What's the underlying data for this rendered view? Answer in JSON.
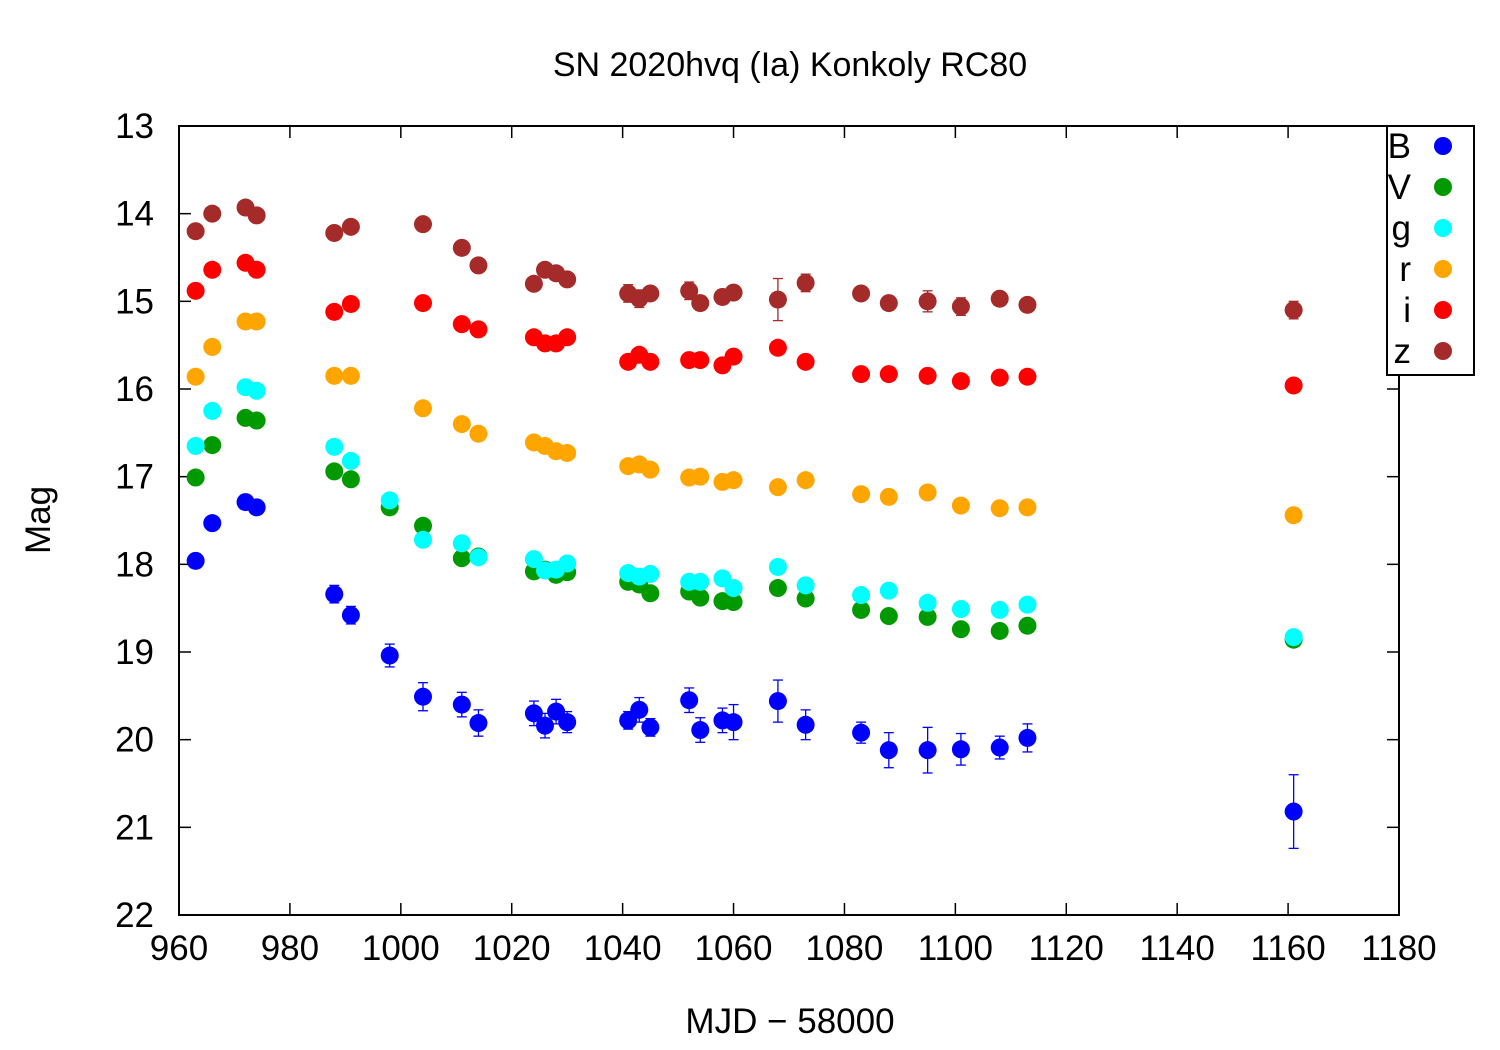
{
  "chart_data": {
    "type": "scatter",
    "title": "SN 2020hvq (Ia) Konkoly RC80",
    "xlabel": "MJD − 58000",
    "ylabel": "Mag",
    "xlim": [
      960,
      1180
    ],
    "ylim": [
      22,
      13
    ],
    "y_inverted": true,
    "x_ticks": [
      960,
      980,
      1000,
      1020,
      1040,
      1060,
      1080,
      1100,
      1120,
      1140,
      1160,
      1180
    ],
    "y_ticks": [
      13,
      14,
      15,
      16,
      17,
      18,
      19,
      20,
      21,
      22
    ],
    "grid": false,
    "legend_position": "top-right",
    "series": [
      {
        "name": "B",
        "color": "#0000ff",
        "points": [
          {
            "x": 963,
            "y": 17.96,
            "err": 0.08
          },
          {
            "x": 966,
            "y": 17.53,
            "err": 0.08
          },
          {
            "x": 972,
            "y": 17.29,
            "err": 0.08
          },
          {
            "x": 974,
            "y": 17.35,
            "err": 0.08
          },
          {
            "x": 988,
            "y": 18.34,
            "err": 0.1
          },
          {
            "x": 991,
            "y": 18.58,
            "err": 0.1
          },
          {
            "x": 998,
            "y": 19.04,
            "err": 0.13
          },
          {
            "x": 1004,
            "y": 19.51,
            "err": 0.16
          },
          {
            "x": 1011,
            "y": 19.6,
            "err": 0.14
          },
          {
            "x": 1014,
            "y": 19.81,
            "err": 0.15
          },
          {
            "x": 1024,
            "y": 19.7,
            "err": 0.14
          },
          {
            "x": 1026,
            "y": 19.84,
            "err": 0.14
          },
          {
            "x": 1028,
            "y": 19.68,
            "err": 0.14
          },
          {
            "x": 1030,
            "y": 19.8,
            "err": 0.12
          },
          {
            "x": 1041,
            "y": 19.78,
            "err": 0.1
          },
          {
            "x": 1043,
            "y": 19.66,
            "err": 0.14
          },
          {
            "x": 1045,
            "y": 19.86,
            "err": 0.1
          },
          {
            "x": 1052,
            "y": 19.55,
            "err": 0.14
          },
          {
            "x": 1054,
            "y": 19.89,
            "err": 0.14
          },
          {
            "x": 1058,
            "y": 19.78,
            "err": 0.14
          },
          {
            "x": 1060,
            "y": 19.8,
            "err": 0.2
          },
          {
            "x": 1068,
            "y": 19.56,
            "err": 0.24
          },
          {
            "x": 1073,
            "y": 19.83,
            "err": 0.17
          },
          {
            "x": 1083,
            "y": 19.92,
            "err": 0.12
          },
          {
            "x": 1088,
            "y": 20.12,
            "err": 0.2
          },
          {
            "x": 1095,
            "y": 20.12,
            "err": 0.26
          },
          {
            "x": 1101,
            "y": 20.11,
            "err": 0.18
          },
          {
            "x": 1108,
            "y": 20.09,
            "err": 0.13
          },
          {
            "x": 1113,
            "y": 19.98,
            "err": 0.16
          },
          {
            "x": 1161,
            "y": 20.82,
            "err": 0.42
          }
        ]
      },
      {
        "name": "V",
        "color": "#009900",
        "points": [
          {
            "x": 963,
            "y": 17.01,
            "err": 0.04
          },
          {
            "x": 966,
            "y": 16.64,
            "err": 0.04
          },
          {
            "x": 972,
            "y": 16.33,
            "err": 0.04
          },
          {
            "x": 974,
            "y": 16.36,
            "err": 0.04
          },
          {
            "x": 988,
            "y": 16.94,
            "err": 0.05
          },
          {
            "x": 991,
            "y": 17.03,
            "err": 0.05
          },
          {
            "x": 998,
            "y": 17.35,
            "err": 0.05
          },
          {
            "x": 1004,
            "y": 17.56,
            "err": 0.05
          },
          {
            "x": 1011,
            "y": 17.93,
            "err": 0.05
          },
          {
            "x": 1014,
            "y": 17.91,
            "err": 0.05
          },
          {
            "x": 1024,
            "y": 18.08,
            "err": 0.05
          },
          {
            "x": 1026,
            "y": 18.06,
            "err": 0.05
          },
          {
            "x": 1028,
            "y": 18.12,
            "err": 0.05
          },
          {
            "x": 1030,
            "y": 18.09,
            "err": 0.05
          },
          {
            "x": 1041,
            "y": 18.2,
            "err": 0.05
          },
          {
            "x": 1043,
            "y": 18.23,
            "err": 0.05
          },
          {
            "x": 1045,
            "y": 18.33,
            "err": 0.05
          },
          {
            "x": 1052,
            "y": 18.31,
            "err": 0.05
          },
          {
            "x": 1054,
            "y": 18.38,
            "err": 0.05
          },
          {
            "x": 1058,
            "y": 18.42,
            "err": 0.05
          },
          {
            "x": 1060,
            "y": 18.43,
            "err": 0.05
          },
          {
            "x": 1068,
            "y": 18.27,
            "err": 0.06
          },
          {
            "x": 1073,
            "y": 18.39,
            "err": 0.05
          },
          {
            "x": 1083,
            "y": 18.52,
            "err": 0.05
          },
          {
            "x": 1088,
            "y": 18.59,
            "err": 0.05
          },
          {
            "x": 1095,
            "y": 18.6,
            "err": 0.06
          },
          {
            "x": 1101,
            "y": 18.74,
            "err": 0.05
          },
          {
            "x": 1108,
            "y": 18.76,
            "err": 0.05
          },
          {
            "x": 1113,
            "y": 18.7,
            "err": 0.05
          },
          {
            "x": 1161,
            "y": 18.86,
            "err": 0.06
          }
        ]
      },
      {
        "name": "g",
        "color": "#00ffff",
        "points": [
          {
            "x": 963,
            "y": 16.65,
            "err": 0.04
          },
          {
            "x": 966,
            "y": 16.25,
            "err": 0.04
          },
          {
            "x": 972,
            "y": 15.98,
            "err": 0.04
          },
          {
            "x": 974,
            "y": 16.02,
            "err": 0.04
          },
          {
            "x": 988,
            "y": 16.66,
            "err": 0.04
          },
          {
            "x": 991,
            "y": 16.82,
            "err": 0.04
          },
          {
            "x": 998,
            "y": 17.27,
            "err": 0.05
          },
          {
            "x": 1004,
            "y": 17.72,
            "err": 0.05
          },
          {
            "x": 1011,
            "y": 17.76,
            "err": 0.05
          },
          {
            "x": 1014,
            "y": 17.92,
            "err": 0.05
          },
          {
            "x": 1024,
            "y": 17.94,
            "err": 0.05
          },
          {
            "x": 1026,
            "y": 18.07,
            "err": 0.05
          },
          {
            "x": 1028,
            "y": 18.06,
            "err": 0.05
          },
          {
            "x": 1030,
            "y": 17.99,
            "err": 0.05
          },
          {
            "x": 1041,
            "y": 18.1,
            "err": 0.05
          },
          {
            "x": 1043,
            "y": 18.14,
            "err": 0.05
          },
          {
            "x": 1045,
            "y": 18.11,
            "err": 0.05
          },
          {
            "x": 1052,
            "y": 18.2,
            "err": 0.05
          },
          {
            "x": 1054,
            "y": 18.2,
            "err": 0.05
          },
          {
            "x": 1058,
            "y": 18.16,
            "err": 0.05
          },
          {
            "x": 1060,
            "y": 18.27,
            "err": 0.05
          },
          {
            "x": 1068,
            "y": 18.03,
            "err": 0.08
          },
          {
            "x": 1073,
            "y": 18.24,
            "err": 0.05
          },
          {
            "x": 1083,
            "y": 18.35,
            "err": 0.05
          },
          {
            "x": 1088,
            "y": 18.3,
            "err": 0.05
          },
          {
            "x": 1095,
            "y": 18.44,
            "err": 0.08
          },
          {
            "x": 1101,
            "y": 18.51,
            "err": 0.06
          },
          {
            "x": 1108,
            "y": 18.52,
            "err": 0.06
          },
          {
            "x": 1113,
            "y": 18.46,
            "err": 0.06
          },
          {
            "x": 1161,
            "y": 18.83,
            "err": 0.08
          }
        ]
      },
      {
        "name": "r",
        "color": "#ffa500",
        "points": [
          {
            "x": 963,
            "y": 15.86,
            "err": 0.03
          },
          {
            "x": 966,
            "y": 15.52,
            "err": 0.03
          },
          {
            "x": 972,
            "y": 15.23,
            "err": 0.03
          },
          {
            "x": 974,
            "y": 15.23,
            "err": 0.03
          },
          {
            "x": 988,
            "y": 15.85,
            "err": 0.03
          },
          {
            "x": 991,
            "y": 15.85,
            "err": 0.03
          },
          {
            "x": 1004,
            "y": 16.22,
            "err": 0.03
          },
          {
            "x": 1011,
            "y": 16.4,
            "err": 0.03
          },
          {
            "x": 1014,
            "y": 16.51,
            "err": 0.03
          },
          {
            "x": 1024,
            "y": 16.61,
            "err": 0.03
          },
          {
            "x": 1026,
            "y": 16.65,
            "err": 0.03
          },
          {
            "x": 1028,
            "y": 16.71,
            "err": 0.03
          },
          {
            "x": 1030,
            "y": 16.73,
            "err": 0.03
          },
          {
            "x": 1041,
            "y": 16.88,
            "err": 0.03
          },
          {
            "x": 1043,
            "y": 16.86,
            "err": 0.03
          },
          {
            "x": 1045,
            "y": 16.92,
            "err": 0.03
          },
          {
            "x": 1052,
            "y": 17.01,
            "err": 0.03
          },
          {
            "x": 1054,
            "y": 17.0,
            "err": 0.03
          },
          {
            "x": 1058,
            "y": 17.06,
            "err": 0.03
          },
          {
            "x": 1060,
            "y": 17.04,
            "err": 0.03
          },
          {
            "x": 1068,
            "y": 17.12,
            "err": 0.06
          },
          {
            "x": 1073,
            "y": 17.04,
            "err": 0.03
          },
          {
            "x": 1083,
            "y": 17.2,
            "err": 0.03
          },
          {
            "x": 1088,
            "y": 17.23,
            "err": 0.03
          },
          {
            "x": 1095,
            "y": 17.18,
            "err": 0.03
          },
          {
            "x": 1101,
            "y": 17.33,
            "err": 0.03
          },
          {
            "x": 1108,
            "y": 17.36,
            "err": 0.03
          },
          {
            "x": 1113,
            "y": 17.35,
            "err": 0.03
          },
          {
            "x": 1161,
            "y": 17.44,
            "err": 0.03
          }
        ]
      },
      {
        "name": "i",
        "color": "#ff0000",
        "points": [
          {
            "x": 963,
            "y": 14.88,
            "err": 0.03
          },
          {
            "x": 966,
            "y": 14.64,
            "err": 0.03
          },
          {
            "x": 972,
            "y": 14.56,
            "err": 0.03
          },
          {
            "x": 974,
            "y": 14.64,
            "err": 0.03
          },
          {
            "x": 988,
            "y": 15.12,
            "err": 0.03
          },
          {
            "x": 991,
            "y": 15.03,
            "err": 0.03
          },
          {
            "x": 1004,
            "y": 15.02,
            "err": 0.03
          },
          {
            "x": 1011,
            "y": 15.26,
            "err": 0.03
          },
          {
            "x": 1014,
            "y": 15.32,
            "err": 0.03
          },
          {
            "x": 1024,
            "y": 15.41,
            "err": 0.03
          },
          {
            "x": 1026,
            "y": 15.48,
            "err": 0.03
          },
          {
            "x": 1028,
            "y": 15.48,
            "err": 0.03
          },
          {
            "x": 1030,
            "y": 15.41,
            "err": 0.03
          },
          {
            "x": 1041,
            "y": 15.69,
            "err": 0.03
          },
          {
            "x": 1043,
            "y": 15.61,
            "err": 0.03
          },
          {
            "x": 1045,
            "y": 15.69,
            "err": 0.03
          },
          {
            "x": 1052,
            "y": 15.67,
            "err": 0.03
          },
          {
            "x": 1054,
            "y": 15.67,
            "err": 0.03
          },
          {
            "x": 1058,
            "y": 15.73,
            "err": 0.03
          },
          {
            "x": 1060,
            "y": 15.63,
            "err": 0.03
          },
          {
            "x": 1068,
            "y": 15.53,
            "err": 0.06
          },
          {
            "x": 1073,
            "y": 15.69,
            "err": 0.03
          },
          {
            "x": 1083,
            "y": 15.83,
            "err": 0.03
          },
          {
            "x": 1088,
            "y": 15.83,
            "err": 0.03
          },
          {
            "x": 1095,
            "y": 15.85,
            "err": 0.03
          },
          {
            "x": 1101,
            "y": 15.91,
            "err": 0.03
          },
          {
            "x": 1108,
            "y": 15.87,
            "err": 0.03
          },
          {
            "x": 1113,
            "y": 15.86,
            "err": 0.03
          },
          {
            "x": 1161,
            "y": 15.96,
            "err": 0.03
          }
        ]
      },
      {
        "name": "z",
        "color": "#a52a2a",
        "points": [
          {
            "x": 963,
            "y": 14.2,
            "err": 0.04
          },
          {
            "x": 966,
            "y": 14.0,
            "err": 0.04
          },
          {
            "x": 972,
            "y": 13.93,
            "err": 0.04
          },
          {
            "x": 974,
            "y": 14.02,
            "err": 0.04
          },
          {
            "x": 988,
            "y": 14.22,
            "err": 0.04
          },
          {
            "x": 991,
            "y": 14.15,
            "err": 0.04
          },
          {
            "x": 1004,
            "y": 14.12,
            "err": 0.04
          },
          {
            "x": 1011,
            "y": 14.39,
            "err": 0.04
          },
          {
            "x": 1014,
            "y": 14.59,
            "err": 0.04
          },
          {
            "x": 1024,
            "y": 14.8,
            "err": 0.06
          },
          {
            "x": 1026,
            "y": 14.64,
            "err": 0.05
          },
          {
            "x": 1028,
            "y": 14.68,
            "err": 0.05
          },
          {
            "x": 1030,
            "y": 14.75,
            "err": 0.05
          },
          {
            "x": 1041,
            "y": 14.91,
            "err": 0.1
          },
          {
            "x": 1043,
            "y": 14.97,
            "err": 0.1
          },
          {
            "x": 1045,
            "y": 14.91,
            "err": 0.06
          },
          {
            "x": 1052,
            "y": 14.88,
            "err": 0.1
          },
          {
            "x": 1054,
            "y": 15.02,
            "err": 0.08
          },
          {
            "x": 1058,
            "y": 14.95,
            "err": 0.08
          },
          {
            "x": 1060,
            "y": 14.9,
            "err": 0.06
          },
          {
            "x": 1068,
            "y": 14.98,
            "err": 0.24
          },
          {
            "x": 1073,
            "y": 14.79,
            "err": 0.1
          },
          {
            "x": 1083,
            "y": 14.91,
            "err": 0.06
          },
          {
            "x": 1088,
            "y": 15.02,
            "err": 0.06
          },
          {
            "x": 1095,
            "y": 15.0,
            "err": 0.12
          },
          {
            "x": 1101,
            "y": 15.06,
            "err": 0.1
          },
          {
            "x": 1108,
            "y": 14.97,
            "err": 0.06
          },
          {
            "x": 1113,
            "y": 15.04,
            "err": 0.06
          },
          {
            "x": 1161,
            "y": 15.1,
            "err": 0.1
          }
        ]
      }
    ]
  }
}
